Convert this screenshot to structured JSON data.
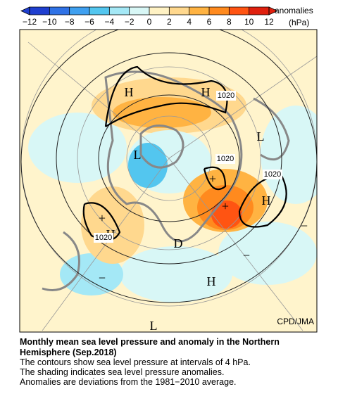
{
  "colorbar": {
    "label": "anomalies",
    "unit": "(hPa)",
    "lim": [
      -12,
      12
    ],
    "ticks": [
      {
        "value": -12,
        "label": "−12"
      },
      {
        "value": -10,
        "label": "−10"
      },
      {
        "value": -8,
        "label": "−8"
      },
      {
        "value": -6,
        "label": "−6"
      },
      {
        "value": -4,
        "label": "−4"
      },
      {
        "value": -2,
        "label": "−2"
      },
      0,
      2,
      4,
      6,
      8,
      10,
      12
    ],
    "colors": [
      "#1f3fd0",
      "#2f72e6",
      "#3fa0f0",
      "#53c6ef",
      "#a4e8f6",
      "#d8f7f6",
      "#fff2c4",
      "#ffd88e",
      "#ffb342",
      "#ff8a1e",
      "#ff5412",
      "#e0200e"
    ]
  },
  "map": {
    "labels": [
      "H",
      "H",
      "1020",
      "L",
      "L",
      "1020",
      "1020",
      "H",
      "+",
      "+",
      "+",
      "H",
      "1020",
      "D",
      "−",
      "−",
      "H",
      "−",
      "L"
    ],
    "credit": "CPD/JMA"
  },
  "caption": {
    "title": "Monthly mean sea level pressure and anomaly in the Northern Hemisphere (Sep.2018)",
    "lines": [
      "The contours show sea level pressure at intervals of 4 hPa.",
      "The shading indicates sea level pressure anomalies.",
      "Anomalies are deviations from the 1981−2010 average."
    ]
  }
}
